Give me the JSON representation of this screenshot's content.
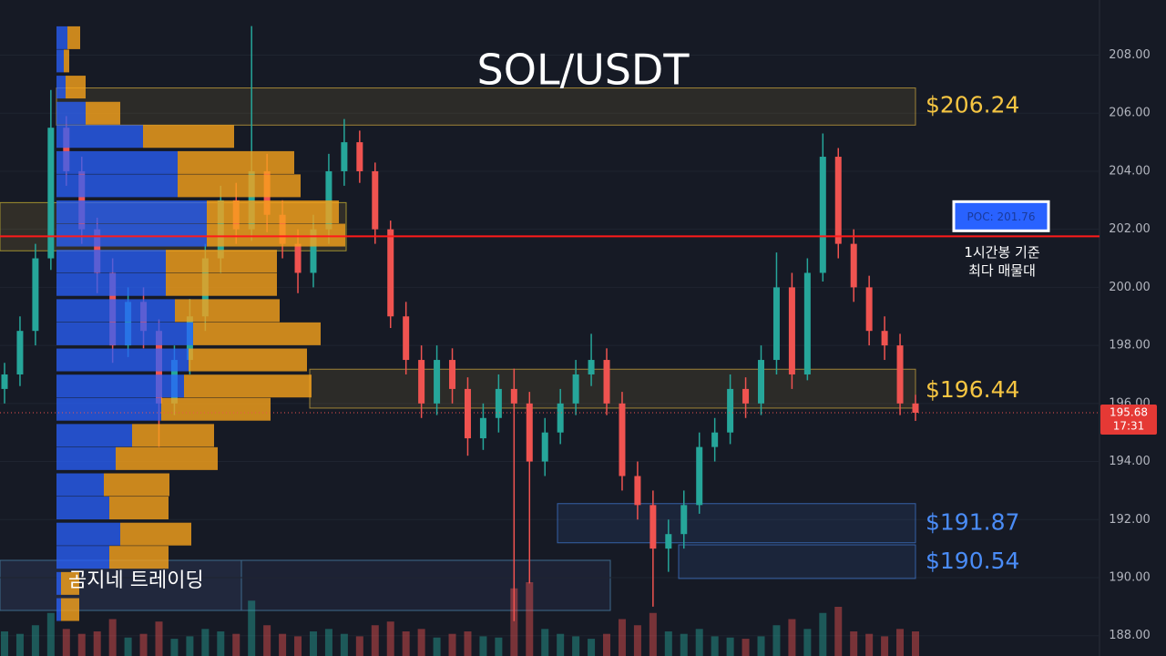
{
  "chart_data": {
    "type": "candlestick",
    "title": "SOL/USDT",
    "ylim": [
      187.3,
      209.9
    ],
    "yticks": [
      {
        "value": 188,
        "label": "188.00"
      },
      {
        "value": 190,
        "label": "190.00"
      },
      {
        "value": 192,
        "label": "192.00"
      },
      {
        "value": 194,
        "label": "194.00"
      },
      {
        "value": 196,
        "label": "196.00"
      },
      {
        "value": 198,
        "label": "198.00"
      },
      {
        "value": 200,
        "label": "200.00"
      },
      {
        "value": 202,
        "label": "202.00"
      },
      {
        "value": 204,
        "label": "204.00"
      },
      {
        "value": 206,
        "label": "206.00"
      },
      {
        "value": 208,
        "label": "208.00"
      }
    ],
    "up_color": "#26a69a",
    "down_color": "#ef5350",
    "open": [
      196.5,
      197.0,
      198.5,
      201.0,
      205.5,
      204.0,
      202.0,
      200.5,
      198.0,
      199.5,
      198.5,
      196.0,
      197.5,
      199.0,
      201.0,
      203.0,
      202.0,
      204.0,
      202.5,
      201.5,
      200.5,
      202.0,
      204.0,
      205.0,
      204.0,
      202.0,
      199.0,
      197.5,
      196.0,
      197.5,
      196.5,
      194.8,
      195.5,
      196.5,
      196.0,
      194.0,
      195.0,
      196.0,
      197.0,
      197.5,
      196.0,
      193.5,
      192.5,
      191.0,
      191.5,
      192.5,
      194.5,
      195.0,
      196.5,
      196.0,
      197.5,
      200.0,
      197.0,
      200.5,
      204.5,
      201.5,
      200.0,
      198.5,
      198.0,
      196.0
    ],
    "high": [
      197.4,
      199.0,
      201.5,
      206.8,
      205.9,
      204.5,
      202.4,
      201.0,
      200.0,
      200.0,
      198.9,
      198.0,
      199.6,
      201.5,
      203.5,
      203.6,
      209.0,
      204.6,
      203.0,
      202.0,
      202.5,
      204.6,
      205.8,
      205.4,
      204.3,
      202.3,
      199.5,
      198.0,
      198.0,
      197.9,
      196.9,
      196.0,
      197.0,
      197.2,
      196.4,
      195.5,
      196.5,
      197.5,
      198.4,
      197.9,
      196.4,
      194.0,
      193.0,
      192.0,
      193.0,
      195.0,
      195.5,
      197.0,
      196.9,
      198.0,
      201.2,
      200.5,
      201.0,
      205.3,
      204.8,
      202.0,
      200.4,
      199.0,
      198.4,
      196.3
    ],
    "low": [
      196.0,
      196.6,
      198.0,
      200.6,
      203.5,
      201.5,
      199.8,
      197.4,
      197.6,
      197.9,
      194.5,
      195.6,
      197.0,
      198.5,
      200.5,
      201.5,
      201.6,
      201.9,
      201.0,
      199.8,
      200.0,
      201.5,
      203.5,
      203.6,
      201.5,
      198.6,
      197.0,
      195.5,
      195.6,
      196.0,
      194.2,
      194.4,
      195.0,
      188.5,
      189.8,
      193.5,
      194.6,
      195.6,
      196.6,
      195.6,
      193.0,
      192.0,
      189.0,
      190.2,
      191.0,
      192.2,
      194.0,
      194.6,
      195.5,
      195.6,
      197.0,
      196.5,
      196.8,
      200.2,
      201.0,
      199.5,
      198.0,
      197.5,
      195.6,
      195.4
    ],
    "close": [
      197.0,
      198.5,
      201.0,
      205.5,
      204.0,
      202.0,
      200.5,
      198.0,
      199.5,
      198.5,
      196.0,
      197.5,
      199.0,
      201.0,
      203.0,
      202.0,
      204.0,
      202.5,
      201.5,
      200.5,
      202.0,
      204.0,
      205.0,
      204.0,
      202.0,
      199.0,
      197.5,
      196.0,
      197.5,
      196.5,
      194.8,
      195.5,
      196.5,
      196.0,
      194.0,
      195.0,
      196.0,
      197.0,
      197.5,
      196.0,
      193.5,
      192.5,
      191.0,
      191.5,
      192.5,
      194.5,
      195.0,
      196.5,
      196.0,
      197.5,
      200.0,
      197.0,
      200.5,
      204.5,
      201.5,
      200.0,
      198.5,
      198.0,
      196.0,
      195.68
    ],
    "volume": [
      20,
      18,
      25,
      35,
      22,
      18,
      20,
      30,
      15,
      18,
      28,
      14,
      16,
      22,
      20,
      18,
      45,
      25,
      18,
      16,
      20,
      22,
      18,
      16,
      25,
      28,
      20,
      22,
      15,
      18,
      20,
      16,
      15,
      55,
      60,
      22,
      18,
      16,
      14,
      18,
      30,
      25,
      35,
      20,
      18,
      22,
      16,
      15,
      14,
      16,
      25,
      30,
      22,
      35,
      40,
      20,
      18,
      16,
      22,
      20
    ],
    "volume_ylim": [
      0,
      100
    ],
    "volume_profile": {
      "levels": [
        208.6,
        207.8,
        206.9,
        206.0,
        205.2,
        204.3,
        203.5,
        202.6,
        201.8,
        200.9,
        200.1,
        199.2,
        198.4,
        197.5,
        196.6,
        195.8,
        194.9,
        194.1,
        193.2,
        192.4,
        191.5,
        190.7,
        189.8,
        188.9
      ],
      "buy": [
        12,
        8,
        10,
        32,
        95,
        133,
        133,
        165,
        165,
        120,
        120,
        130,
        150,
        145,
        140,
        115,
        83,
        65,
        52,
        58,
        70,
        58,
        5,
        5
      ],
      "sell": [
        14,
        6,
        22,
        38,
        100,
        128,
        135,
        145,
        152,
        122,
        122,
        115,
        140,
        130,
        140,
        120,
        90,
        112,
        72,
        65,
        78,
        65,
        20,
        20
      ],
      "buy_color": "#2962ff",
      "sell_color": "#f7a21b",
      "xlim": [
        0,
        400
      ]
    },
    "levels": [
      {
        "value": 206.24,
        "label": "$206.24",
        "range": [
          205.59,
          206.87
        ],
        "color": "#f5c542"
      },
      {
        "value": 196.44,
        "label": "$196.44",
        "range": [
          195.84,
          197.18
        ],
        "color": "#f5c542"
      },
      {
        "value": 191.87,
        "label": "$191.87",
        "range": [
          191.2,
          192.55
        ],
        "color": "#4a8cf7"
      },
      {
        "value": 190.54,
        "label": "$190.54",
        "range": [
          189.97,
          191.13
        ],
        "color": "#4a8cf7"
      }
    ],
    "zones": [
      {
        "range": [
          201.26,
          202.92
        ]
      }
    ],
    "poc": {
      "value": 201.76,
      "label": "POC: 201.76",
      "note": [
        "1시간봉 기준",
        "최다 매물대"
      ]
    },
    "last_price": {
      "value": 195.68,
      "time": "17:31"
    },
    "watermark": "곰지네 트레이딩"
  }
}
